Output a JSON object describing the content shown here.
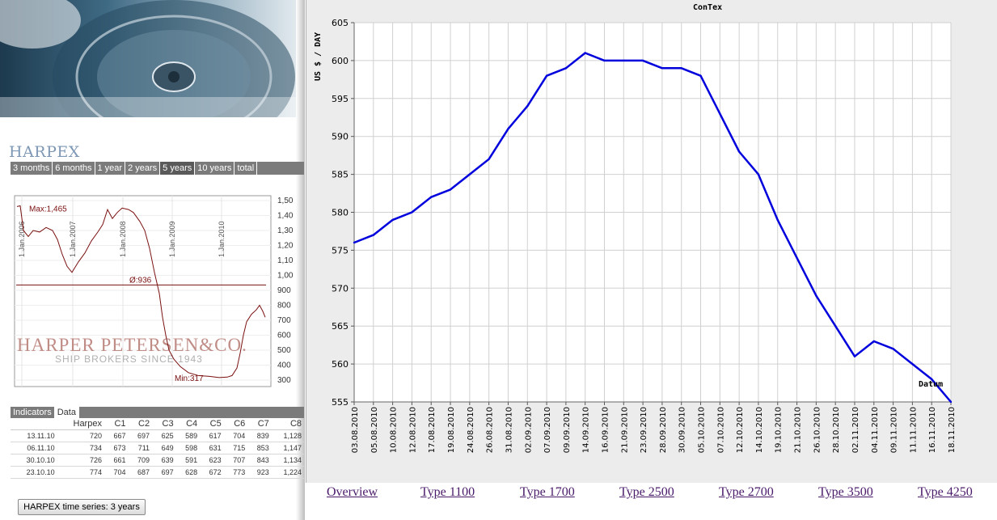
{
  "harpex": {
    "title": "HARPEX",
    "range_tabs": [
      "3 months",
      "6 months",
      "1 year",
      "2 years",
      "5 years",
      "10 years",
      "total"
    ],
    "active_range": "5 years",
    "mini_chart": {
      "y_ticks": [
        300,
        400,
        500,
        600,
        700,
        800,
        900,
        1000,
        1100,
        1200,
        1300,
        1400,
        1500
      ],
      "y_tick_labels": [
        "300",
        "400",
        "500",
        "600",
        "700",
        "800",
        "900",
        "1,000",
        "1,100",
        "1,200",
        "1,300",
        "1,400",
        "1,500"
      ],
      "year_labels": [
        "1.Jan.2006",
        "1.Jan.2007",
        "1.Jan.2008",
        "1.Jan.2009",
        "1.Jan.2010"
      ],
      "max_label": "Max:1,465",
      "avg_label": "Ø:936",
      "min_label": "Min:317",
      "avg_value": 936,
      "watermark_line1": "HARPER PETERSEN&CO.",
      "watermark_line2": "SHIP BROKERS SINCE 1943",
      "line_color": "#7a1010"
    },
    "data_tabs": [
      "Indicators",
      "Data"
    ],
    "active_data_tab": "Data",
    "table": {
      "headers": [
        "",
        "Harpex",
        "C1",
        "C2",
        "C3",
        "C4",
        "C5",
        "C6",
        "C7",
        "C8"
      ],
      "rows": [
        [
          "13.11.10",
          "720",
          "667",
          "697",
          "625",
          "589",
          "617",
          "704",
          "839",
          "1,128"
        ],
        [
          "06.11.10",
          "734",
          "673",
          "711",
          "649",
          "598",
          "631",
          "715",
          "853",
          "1,147"
        ],
        [
          "30.10.10",
          "726",
          "661",
          "709",
          "639",
          "591",
          "623",
          "707",
          "843",
          "1,134"
        ],
        [
          "23.10.10",
          "774",
          "704",
          "687",
          "697",
          "628",
          "672",
          "773",
          "923",
          "1,224"
        ]
      ]
    },
    "time_series_button": "HARPEX time series: 3 years"
  },
  "chart_data": {
    "type": "line",
    "title": "ConTex",
    "ylabel": "US $ / DAY",
    "xlabel": "Datum",
    "ylim": [
      555,
      605
    ],
    "y_ticks": [
      555,
      560,
      565,
      570,
      575,
      580,
      585,
      590,
      595,
      600,
      605
    ],
    "grid": true,
    "line_color": "#0000dd",
    "categories": [
      "03.08.2010",
      "05.08.2010",
      "10.08.2010",
      "12.08.2010",
      "17.08.2010",
      "19.08.2010",
      "24.08.2010",
      "26.08.2010",
      "31.08.2010",
      "02.09.2010",
      "07.09.2010",
      "09.09.2010",
      "14.09.2010",
      "16.09.2010",
      "21.09.2010",
      "23.09.2010",
      "28.09.2010",
      "30.09.2010",
      "05.10.2010",
      "07.10.2010",
      "12.10.2010",
      "14.10.2010",
      "19.10.2010",
      "21.10.2010",
      "26.10.2010",
      "28.10.2010",
      "02.11.2010",
      "04.11.2010",
      "09.11.2010",
      "11.11.2010",
      "16.11.2010",
      "18.11.2010"
    ],
    "series": [
      {
        "values": [
          576,
          577,
          579,
          580,
          582,
          583,
          585,
          587,
          591,
          594,
          598,
          599,
          601,
          600,
          600,
          600,
          599,
          599,
          598,
          593,
          588,
          585,
          579,
          574,
          569,
          565,
          561,
          563,
          562,
          560,
          558,
          555
        ]
      }
    ]
  },
  "nav": {
    "links": [
      "Overview",
      "Type 1100",
      "Type 1700",
      "Type 2500",
      "Type 2700",
      "Type 3500",
      "Type 4250"
    ]
  }
}
